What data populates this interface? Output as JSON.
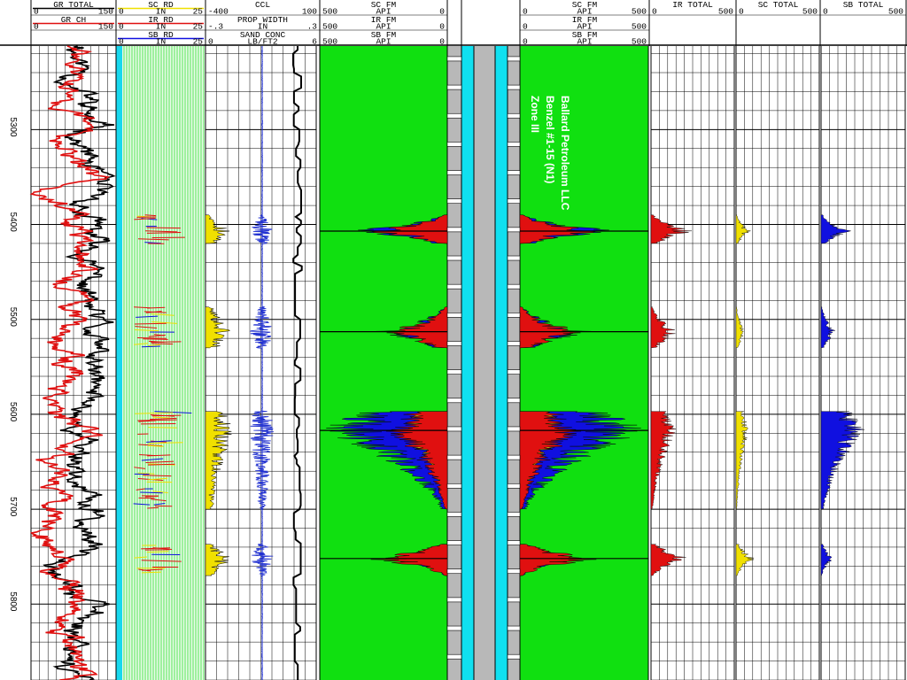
{
  "colors": {
    "gr_total": "#000000",
    "gr_ch": "#e01010",
    "sc": "#f0e000",
    "ir": "#e01010",
    "sb": "#1010e0",
    "ccl": "#2030d0",
    "fm_fill": "#10e010",
    "pipe_gray": "#b8b8b8",
    "pipe_cyan": "#10e0f0",
    "wire_green": "#30e030",
    "cyan_strip": "#18d8ee"
  },
  "header": {
    "track1": [
      {
        "name": "GR TOTAL",
        "left": "0",
        "right": "150",
        "color": "#000000"
      },
      {
        "name": "GR CH",
        "left": "0",
        "right": "150",
        "color": "#e01010"
      }
    ],
    "track2": [
      {
        "name": "SC RD",
        "left": "0",
        "unit": "IN",
        "right": "25",
        "color": "#f0e000"
      },
      {
        "name": "IR RD",
        "left": "0",
        "unit": "IN",
        "right": "25",
        "color": "#e01010"
      },
      {
        "name": "SB RD",
        "left": "0",
        "unit": "IN",
        "right": "25",
        "color": "#1010e0"
      }
    ],
    "track3": [
      {
        "name": "CCL",
        "left": "-400",
        "unit": "",
        "right": "100"
      },
      {
        "name": "PROP WIDTH",
        "left": "-.3",
        "unit": "IN",
        "right": ".3"
      },
      {
        "name": "SAND CONC",
        "left": "0",
        "unit": "LB/FT2",
        "right": "6"
      }
    ],
    "track4": [
      {
        "name": "SC FM",
        "left": "500",
        "unit": "API",
        "right": "0"
      },
      {
        "name": "IR FM",
        "left": "500",
        "unit": "API",
        "right": "0"
      },
      {
        "name": "SB FM",
        "left": "500",
        "unit": "API",
        "right": "0"
      }
    ],
    "track6": [
      {
        "name": "SC FM",
        "left": "0",
        "unit": "API",
        "right": "500"
      },
      {
        "name": "IR FM",
        "left": "0",
        "unit": "API",
        "right": "500"
      },
      {
        "name": "SB FM",
        "left": "0",
        "unit": "API",
        "right": "500"
      }
    ],
    "track7": {
      "name": "IR TOTAL",
      "left": "0",
      "right": "500"
    },
    "track8": {
      "name": "SC TOTAL",
      "left": "0",
      "right": "500"
    },
    "track9": {
      "name": "SB TOTAL",
      "left": "0",
      "right": "500"
    }
  },
  "well_title": [
    "Ballard Petroleum LLC",
    "Benzel #1-15 (N1)",
    "Zone III"
  ],
  "chart_data": {
    "type": "line",
    "depth_axis": {
      "ticks": [
        5300,
        5400,
        5500,
        5600,
        5700,
        5800
      ],
      "range": [
        5212,
        5880
      ],
      "orientation": "vertical"
    },
    "perforation_zones": [
      {
        "depth_top": 5390,
        "depth_bottom": 5420,
        "peak_depth": 5407,
        "sc": 70,
        "ir": 200,
        "sb": 140
      },
      {
        "depth_top": 5487,
        "depth_bottom": 5530,
        "peak_depth": 5513,
        "sc": 45,
        "ir": 130,
        "sb": 70
      },
      {
        "depth_top": 5597,
        "depth_bottom": 5700,
        "peak_depth": 5617,
        "sc": 60,
        "ir": 120,
        "sb": 210
      },
      {
        "depth_top": 5737,
        "depth_bottom": 5770,
        "peak_depth": 5752,
        "sc": 90,
        "ir": 190,
        "sb": 60
      }
    ],
    "series": [
      {
        "name": "GR TOTAL",
        "x_range": [
          0,
          150
        ]
      },
      {
        "name": "GR CH",
        "x_range": [
          0,
          150
        ]
      },
      {
        "name": "IR TOTAL",
        "x_range": [
          0,
          500
        ]
      },
      {
        "name": "SC TOTAL",
        "x_range": [
          0,
          500
        ]
      },
      {
        "name": "SB TOTAL",
        "x_range": [
          0,
          500
        ]
      }
    ]
  }
}
